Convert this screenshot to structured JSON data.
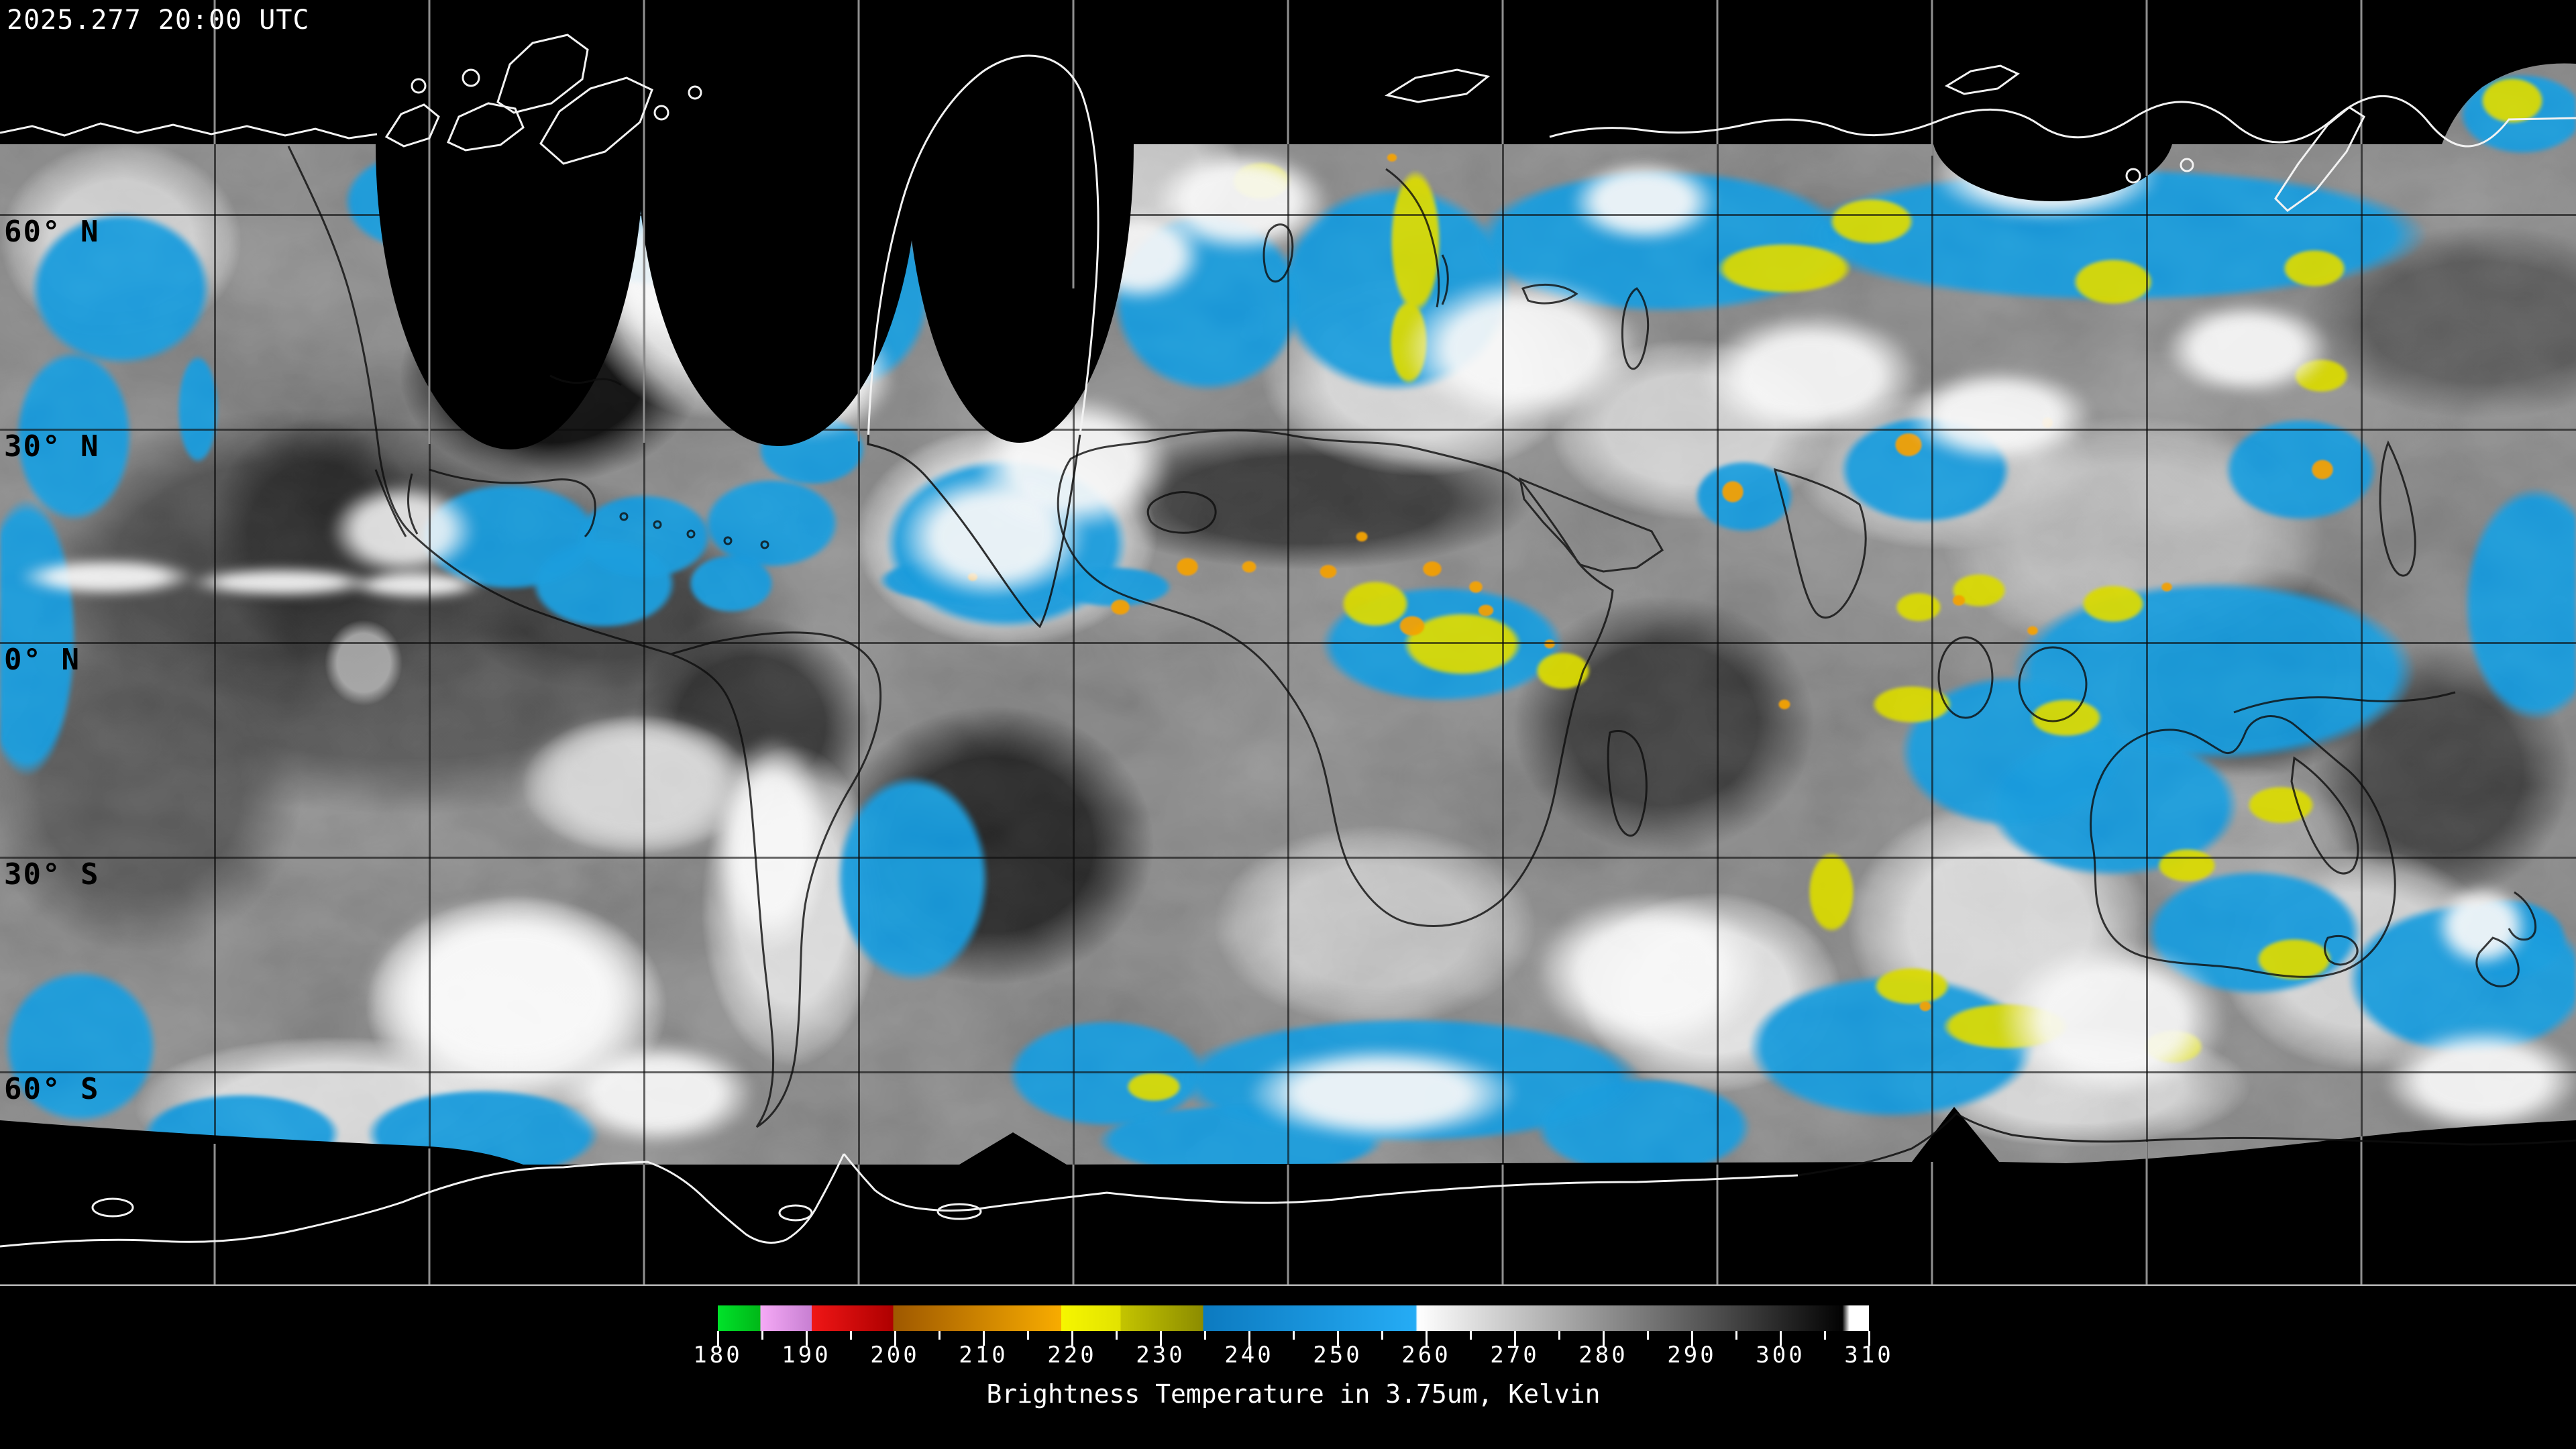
{
  "header": {
    "timestamp": "2025.277 20:00 UTC"
  },
  "map": {
    "latitude_labels": [
      "60° N",
      "30° N",
      "0° N",
      "30° S",
      "60° S"
    ],
    "gridline_latitudes_deg": [
      60,
      30,
      0,
      -30,
      -60
    ],
    "longitude_gridline_spacing_deg": 30,
    "palette": {
      "cold_cloud_blue": "#1596da",
      "very_cold_cloud_yellow": "#d6d600",
      "extreme_cold_cloud_orange": "#f29a00",
      "cloud_white": "#f8f8f8",
      "warm_surface_dark": "#1a1a1a",
      "no_data_black": "#000000",
      "coastline_white": "#f2f2f2",
      "coastline_black": "#0d0d0d"
    }
  },
  "legend": {
    "caption": "Brightness Temperature in 3.75um, Kelvin",
    "tick_labels": [
      "180",
      "190",
      "200",
      "210",
      "220",
      "230",
      "240",
      "250",
      "260",
      "270",
      "280",
      "290",
      "300",
      "310"
    ],
    "value_range": [
      180,
      310
    ],
    "minor_tick_step": 5,
    "gradient_stops": [
      [
        180,
        "#00e22a"
      ],
      [
        184.8,
        "#00b818"
      ],
      [
        184.8,
        "#f6aaf6"
      ],
      [
        190.6,
        "#c77fd2"
      ],
      [
        190.6,
        "#f01616"
      ],
      [
        199.8,
        "#ae0000"
      ],
      [
        199.8,
        "#9e5800"
      ],
      [
        218.8,
        "#f8ac00"
      ],
      [
        218.8,
        "#f6f600"
      ],
      [
        225.5,
        "#e2e200"
      ],
      [
        225.5,
        "#c4c400"
      ],
      [
        234.8,
        "#8c8c00"
      ],
      [
        234.8,
        "#0c7ac0"
      ],
      [
        258.8,
        "#25acf5"
      ],
      [
        259,
        "#ffffff"
      ],
      [
        307,
        "#030303"
      ],
      [
        307.8,
        "#ffffff"
      ],
      [
        310,
        "#ffffff"
      ]
    ]
  }
}
